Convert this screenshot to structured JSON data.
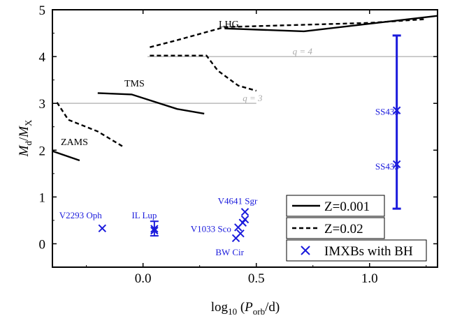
{
  "chart_data": {
    "type": "line",
    "xlabel": {
      "base": "log",
      "sub1": "10",
      "mid": " (",
      "P": "P",
      "sub2": "orb",
      "end": "/d)"
    },
    "ylabel": {
      "M1": "M",
      "sub1": "d",
      "slash": "/",
      "M2": "M",
      "sub2": "X"
    },
    "xlim": [
      -0.4,
      1.3
    ],
    "ylim": [
      -0.5,
      5
    ],
    "x_ticks": [
      0.0,
      0.5,
      1.0
    ],
    "x_tick_labels": [
      "0.0",
      "0.5",
      "1.0"
    ],
    "y_ticks": [
      0,
      1,
      2,
      3,
      4,
      5
    ],
    "y_tick_labels": [
      "0",
      "1",
      "2",
      "3",
      "4",
      "5"
    ],
    "colors": {
      "axis": "#000000",
      "imxb": "#1a1adc",
      "qline": "#bbbbbb",
      "qtext": "#aaaaaa"
    },
    "q_lines": [
      {
        "label": "q = 3",
        "y": 3,
        "x_range": [
          -0.4,
          0.5
        ],
        "label_x": 0.44
      },
      {
        "label": "q = 4",
        "y": 4,
        "x_range": [
          0.02,
          1.3
        ],
        "label_x": 0.66
      }
    ],
    "series": [
      {
        "name": "Z=0.001",
        "style": "solid",
        "segments": [
          [
            [
              -0.4,
              1.98
            ],
            [
              -0.28,
              1.78
            ]
          ],
          [
            [
              -0.2,
              3.22
            ],
            [
              -0.05,
              3.19
            ],
            [
              0.15,
              2.88
            ],
            [
              0.27,
              2.78
            ]
          ],
          [
            [
              0.36,
              4.6
            ],
            [
              0.71,
              4.54
            ],
            [
              1.3,
              4.87
            ]
          ]
        ]
      },
      {
        "name": "Z=0.02",
        "style": "dashed",
        "segments": [
          [
            [
              -0.38,
              3.02
            ],
            [
              -0.33,
              2.65
            ],
            [
              -0.2,
              2.4
            ],
            [
              -0.09,
              2.08
            ]
          ],
          [
            [
              0.03,
              4.2
            ],
            [
              0.15,
              4.35
            ],
            [
              0.36,
              4.63
            ],
            [
              1.0,
              4.72
            ],
            [
              1.25,
              4.8
            ]
          ],
          [
            [
              0.03,
              4.02
            ],
            [
              0.28,
              4.02
            ],
            [
              0.33,
              3.7
            ],
            [
              0.42,
              3.38
            ],
            [
              0.5,
              3.27
            ]
          ]
        ]
      }
    ],
    "imxb_points": [
      {
        "label": "V2293 Oph",
        "x": -0.18,
        "y": 0.33,
        "err": [
          0.33,
          0.33
        ]
      },
      {
        "label": "IL Lup",
        "x": 0.05,
        "y": 0.28,
        "err": [
          0.17,
          0.48
        ]
      },
      {
        "label": "",
        "x": 0.05,
        "y": 0.32,
        "err": [
          0.32,
          0.32
        ]
      },
      {
        "label": "V1033 Sco",
        "x": 0.42,
        "y": 0.35,
        "err": [
          0.35,
          0.35
        ]
      },
      {
        "label": "BW Cir",
        "x": 0.41,
        "y": 0.12,
        "err": [
          0.12,
          0.12
        ]
      },
      {
        "label": "",
        "x": 0.43,
        "y": 0.22,
        "err": [
          0.22,
          0.22
        ]
      },
      {
        "label": "",
        "x": 0.44,
        "y": 0.45,
        "err": [
          0.45,
          0.45
        ]
      },
      {
        "label": "V4641 Sgr",
        "x": 0.45,
        "y": 0.68,
        "err": [
          0.68,
          0.68
        ]
      },
      {
        "label": "",
        "x": 0.45,
        "y": 0.52,
        "err": [
          0.52,
          0.52
        ]
      },
      {
        "label": "SS433",
        "x": 1.12,
        "y": 2.85,
        "err": [
          0.75,
          4.45
        ]
      },
      {
        "label": "SS433",
        "x": 1.12,
        "y": 1.7,
        "err": [
          1.7,
          1.7
        ]
      }
    ],
    "annotations": [
      "ZAMS",
      "TMS",
      "LHG"
    ],
    "legend": {
      "placement": "bottom-right",
      "items": [
        {
          "label": "Z=0.001",
          "style": "solid"
        },
        {
          "label": "Z=0.02",
          "style": "dashed"
        },
        {
          "label": "IMXBs with BH",
          "style": "marker"
        }
      ]
    }
  }
}
